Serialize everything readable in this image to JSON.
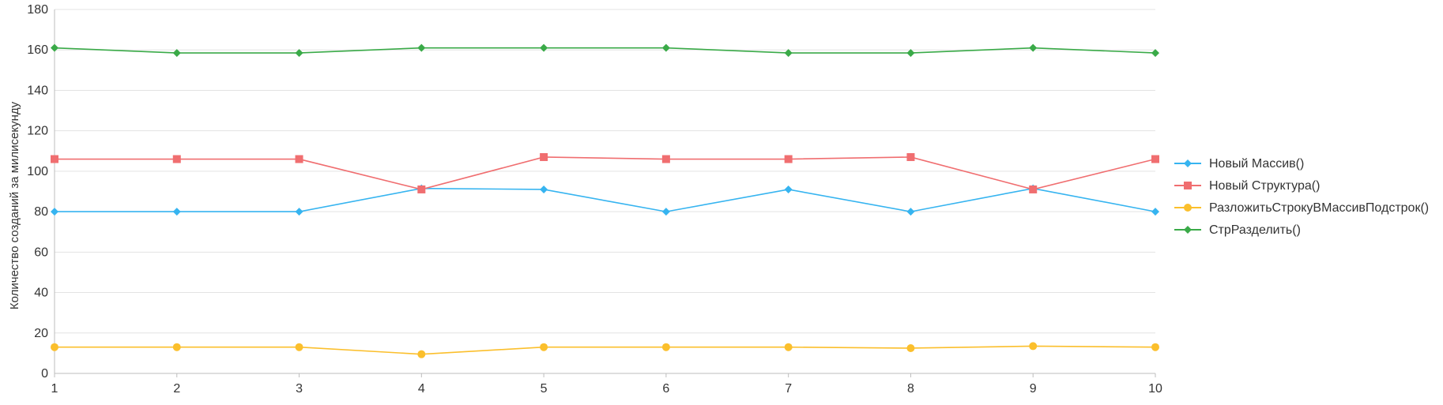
{
  "chart_data": {
    "type": "line",
    "ylabel": "Количество созданий за милисекунду",
    "xlabel": "",
    "x": [
      1,
      2,
      3,
      4,
      5,
      6,
      7,
      8,
      9,
      10
    ],
    "ylim": [
      0,
      180
    ],
    "yticks": [
      0,
      20,
      40,
      60,
      80,
      100,
      120,
      140,
      160,
      180
    ],
    "grid": true,
    "legend_position": "right",
    "series": [
      {
        "name": "Новый Массив()",
        "color": "#36b4f0",
        "marker": "diamond",
        "values": [
          80,
          80,
          80,
          91.5,
          91,
          80,
          91,
          80,
          91.5,
          80
        ]
      },
      {
        "name": "Новый Структура()",
        "color": "#f06e70",
        "marker": "square",
        "values": [
          106,
          106,
          106,
          91,
          107,
          106,
          106,
          107,
          91,
          106
        ]
      },
      {
        "name": "РазложитьСтрокуВМассивПодстрок()",
        "color": "#fbbf2c",
        "marker": "circle",
        "values": [
          13,
          13,
          13,
          9.5,
          13,
          13,
          13,
          12.5,
          13.5,
          13
        ]
      },
      {
        "name": "СтрРазделить()",
        "color": "#3aaa48",
        "marker": "diamond",
        "values": [
          161,
          158.5,
          158.5,
          161,
          161,
          161,
          158.5,
          158.5,
          161,
          158.5
        ]
      }
    ]
  }
}
